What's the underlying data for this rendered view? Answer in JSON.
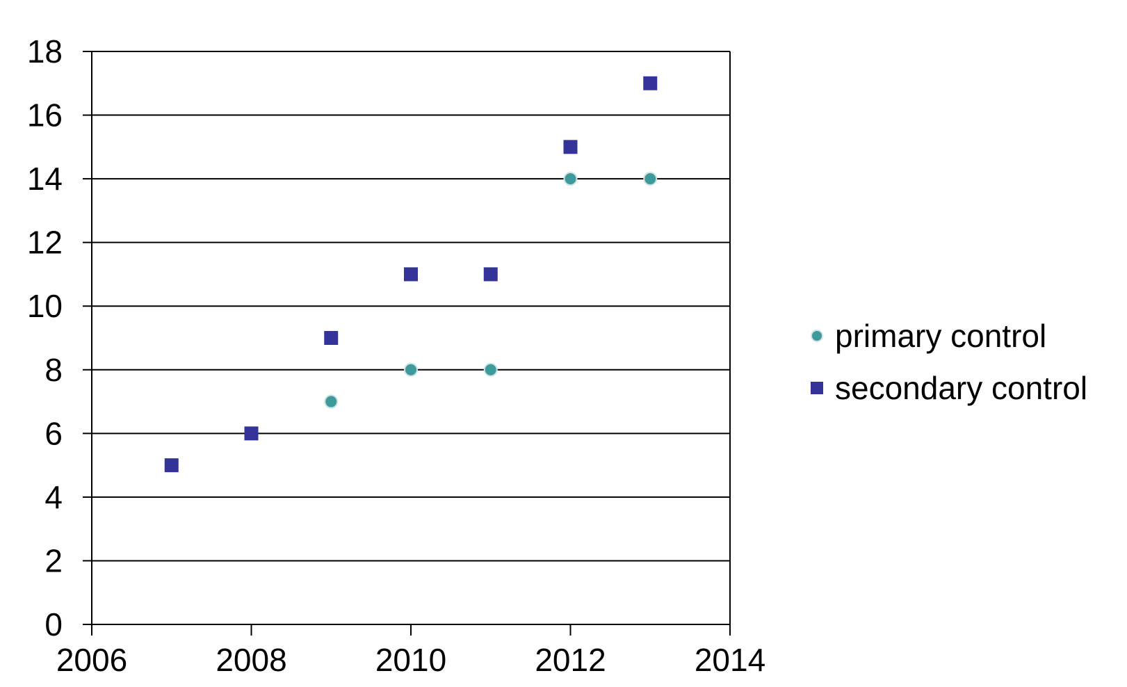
{
  "chart_data": {
    "type": "scatter",
    "title": "",
    "xlabel": "",
    "ylabel": "",
    "xlim": [
      2006,
      2014
    ],
    "ylim": [
      0,
      18
    ],
    "x_ticks": [
      2006,
      2008,
      2010,
      2012,
      2014
    ],
    "y_ticks": [
      0,
      2,
      4,
      6,
      8,
      10,
      12,
      14,
      16,
      18
    ],
    "grid": "horizontal",
    "legend_position": "right",
    "series": [
      {
        "name": "primary control",
        "marker": "circle",
        "color": "#3f9a9b",
        "points": [
          {
            "x": 2009,
            "y": 7
          },
          {
            "x": 2010,
            "y": 8
          },
          {
            "x": 2011,
            "y": 8
          },
          {
            "x": 2012,
            "y": 14
          },
          {
            "x": 2013,
            "y": 14
          }
        ]
      },
      {
        "name": "secondary control",
        "marker": "square",
        "color": "#33339a",
        "points": [
          {
            "x": 2007,
            "y": 5
          },
          {
            "x": 2008,
            "y": 6
          },
          {
            "x": 2009,
            "y": 9
          },
          {
            "x": 2010,
            "y": 11
          },
          {
            "x": 2011,
            "y": 11
          },
          {
            "x": 2012,
            "y": 15
          },
          {
            "x": 2013,
            "y": 17
          }
        ]
      }
    ]
  }
}
